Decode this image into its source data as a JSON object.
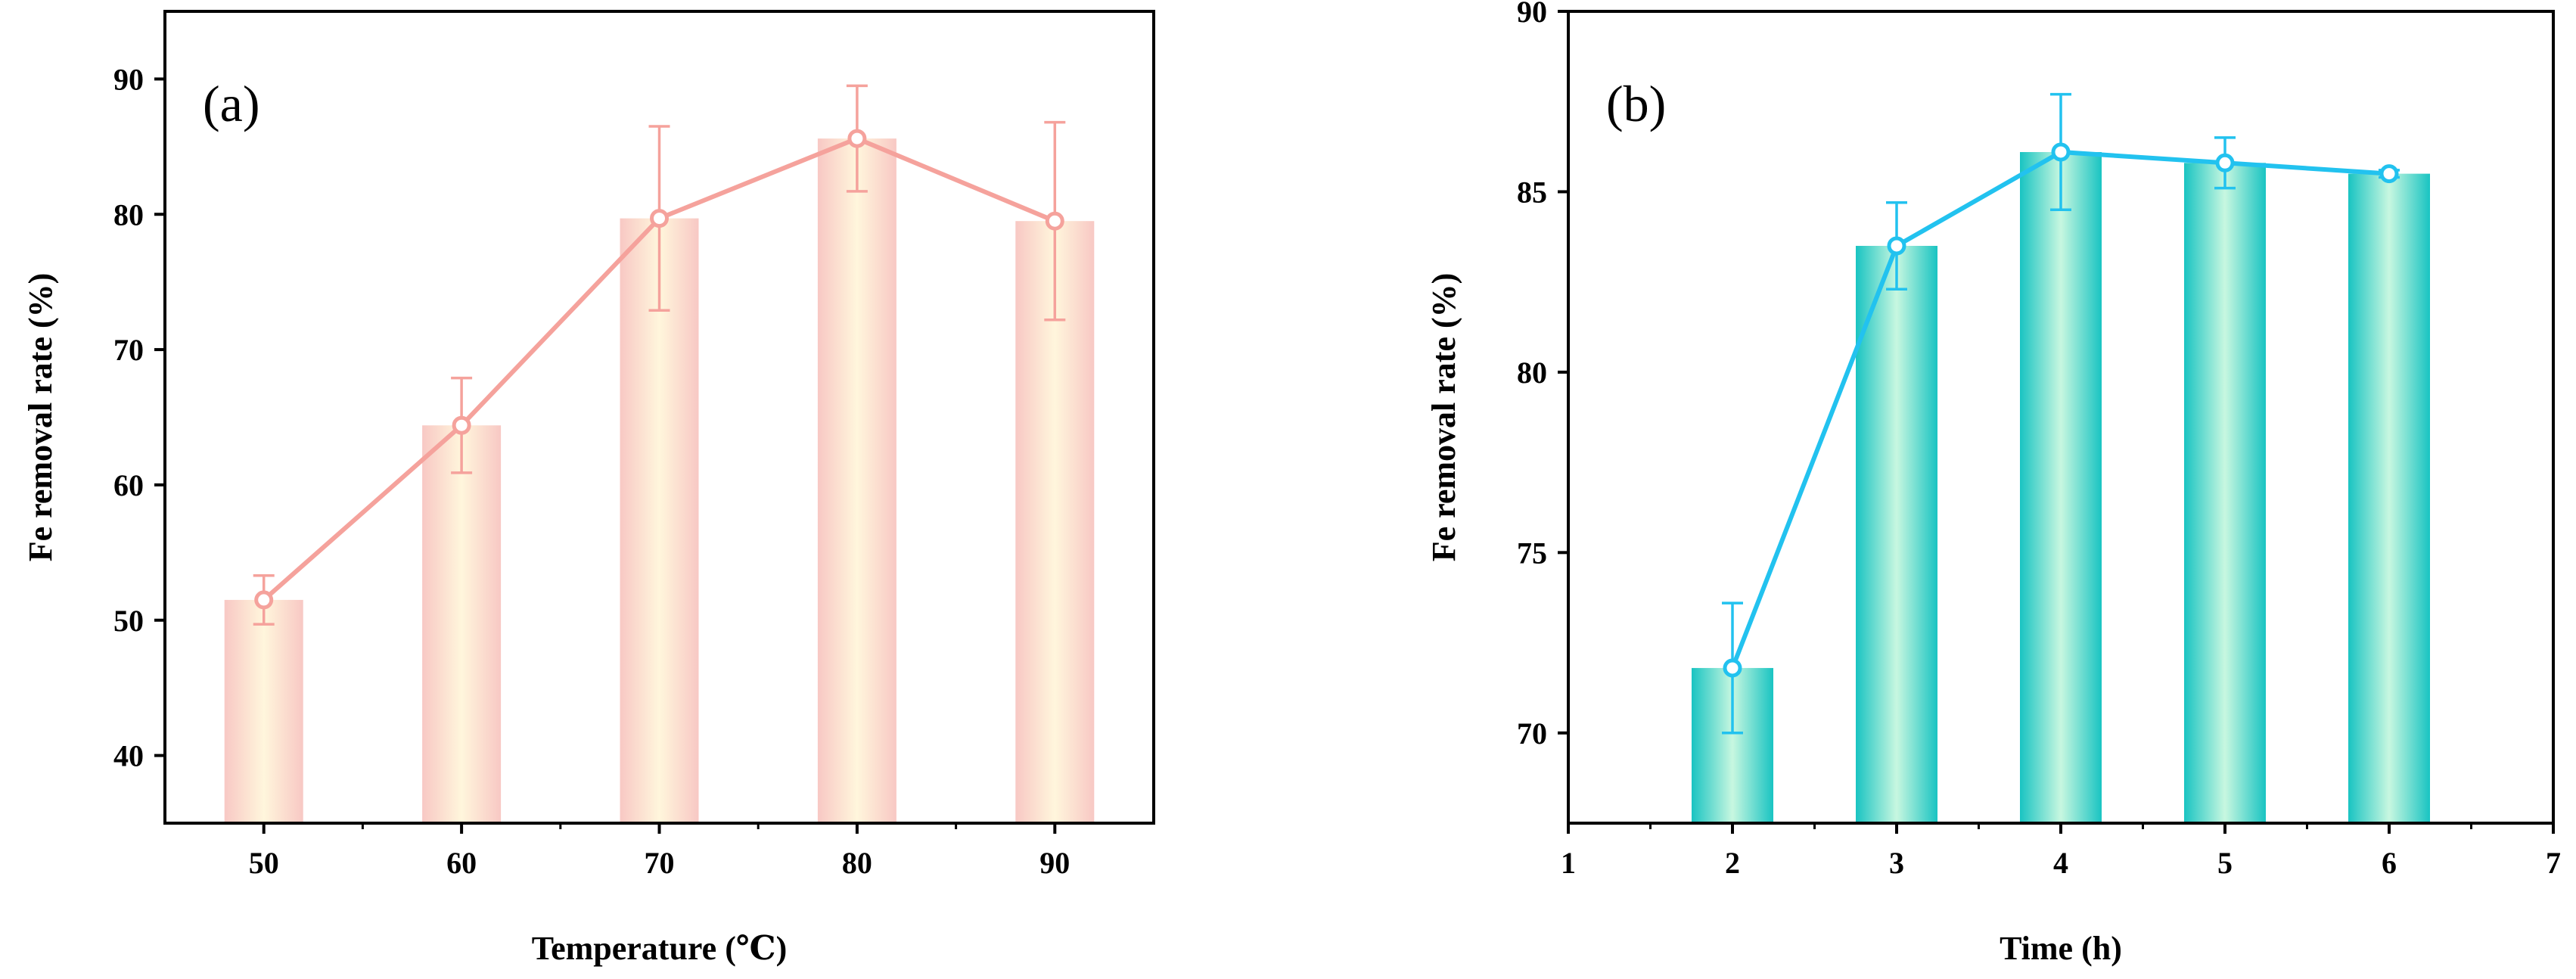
{
  "chart_data": [
    {
      "type": "bar",
      "panel_label": "(a)",
      "xlabel": "Temperature (℃)",
      "ylabel": "Fe removal rate  (%)",
      "categories": [
        "50",
        "60",
        "70",
        "80",
        "90"
      ],
      "values": [
        51.5,
        64.4,
        79.7,
        85.6,
        79.5
      ],
      "errors": [
        1.8,
        3.5,
        6.8,
        3.9,
        7.3
      ],
      "xlim": [
        45,
        95
      ],
      "ylim": [
        35,
        95
      ],
      "yticks": [
        40,
        50,
        60,
        70,
        80,
        90
      ],
      "bar_overlaid_with_line": true,
      "colors": {
        "line": "#f5a29c",
        "bar_edge": "#f8c8c4",
        "bar_center": "#fff6dc"
      }
    },
    {
      "type": "bar",
      "panel_label": "(b)",
      "xlabel": "Time (h)",
      "ylabel": "Fe removal rate  (%)",
      "categories": [
        "2",
        "3",
        "4",
        "5",
        "6"
      ],
      "values": [
        71.8,
        83.5,
        86.1,
        85.8,
        85.5
      ],
      "errors": [
        1.8,
        1.2,
        1.6,
        0.7,
        0.1
      ],
      "xlim": [
        1,
        7
      ],
      "ylim": [
        67.5,
        90
      ],
      "xticks": [
        "1",
        "2",
        "3",
        "4",
        "5",
        "6",
        "7"
      ],
      "yticks": [
        70,
        75,
        80,
        85,
        90
      ],
      "bar_overlaid_with_line": true,
      "colors": {
        "line": "#22c2ef",
        "bar_edge": "#19c4c2",
        "bar_center": "#c8f7e0"
      }
    }
  ]
}
